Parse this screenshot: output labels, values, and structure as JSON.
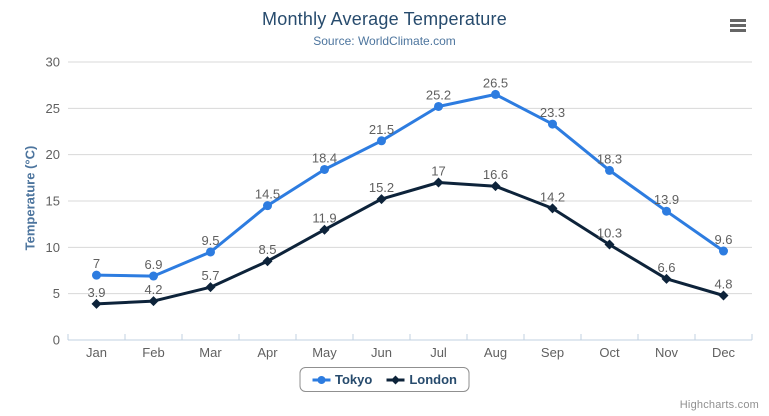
{
  "chart_data": {
    "type": "line",
    "title": "Monthly Average Temperature",
    "subtitle": "Source: WorldClimate.com",
    "categories": [
      "Jan",
      "Feb",
      "Mar",
      "Apr",
      "May",
      "Jun",
      "Jul",
      "Aug",
      "Sep",
      "Oct",
      "Nov",
      "Dec"
    ],
    "series": [
      {
        "name": "Tokyo",
        "color": "#2d7ce0",
        "marker": "circle",
        "values": [
          7,
          6.9,
          9.5,
          14.5,
          18.4,
          21.5,
          25.2,
          26.5,
          23.3,
          18.3,
          13.9,
          9.6
        ]
      },
      {
        "name": "London",
        "color": "#0d233a",
        "marker": "diamond",
        "values": [
          3.9,
          4.2,
          5.7,
          8.5,
          11.9,
          15.2,
          17,
          16.6,
          14.2,
          10.3,
          6.6,
          4.8
        ]
      }
    ],
    "xlabel": "",
    "ylabel": "Temperature (°C)",
    "ylim": [
      0,
      30
    ],
    "ytick_interval": 5,
    "grid": true,
    "data_labels": true,
    "legend_position": "bottom-center"
  },
  "credits": {
    "label": "Highcharts.com"
  },
  "icons": {
    "menu": "hamburger-menu-icon"
  },
  "colors": {
    "title": "#274b6d",
    "subtitle": "#4d759e",
    "axis_title": "#4d759e",
    "tick_label": "#606060",
    "data_label": "#606060",
    "gridline": "#d8d8d8",
    "axis_line": "#c0d0e0",
    "legend_border": "#909090",
    "legend_text": "#274b6d",
    "credits": "#909090",
    "menu_icon": "#666666",
    "background": "#ffffff"
  }
}
